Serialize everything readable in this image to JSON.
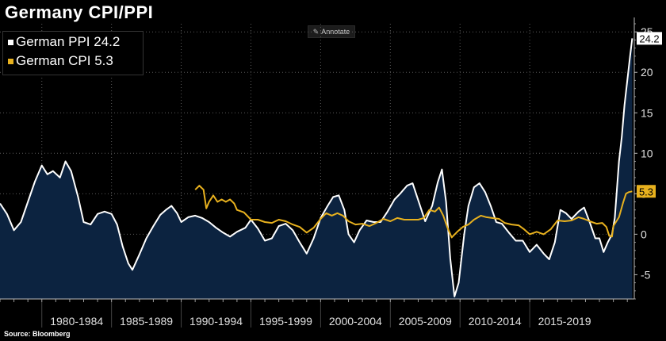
{
  "title": "Germany CPI/PPI",
  "annotate_label": "Annotate",
  "source": "Source:  Bloomberg",
  "colors": {
    "ppi": "#ffffff",
    "cpi": "#e8b11e",
    "area": "#0c2340",
    "background": "#000000"
  },
  "legend": [
    {
      "label": "German PPI 24.2",
      "color": "#ffffff"
    },
    {
      "label": "German CPI 5.3",
      "color": "#e8b11e"
    }
  ],
  "chart_data": {
    "type": "line",
    "title": "Germany CPI/PPI",
    "xlim": [
      1977.0,
      2022.5
    ],
    "ylim": [
      -8,
      26
    ],
    "y_ticks": [
      -5,
      0,
      5,
      10,
      15,
      20,
      25
    ],
    "x_categories": [
      "1980-1984",
      "1985-1989",
      "1990-1994",
      "1995-1999",
      "2000-2004",
      "2005-2009",
      "2010-2014",
      "2015-2019"
    ],
    "x_category_starts": [
      1980,
      1985,
      1990,
      1995,
      2000,
      2005,
      2010,
      2015
    ],
    "grid": true,
    "legend_position": "top-left",
    "series": [
      {
        "name": "German PPI",
        "color": "#ffffff",
        "fill_area": true,
        "last_value": "24.2",
        "points": [
          [
            1977.0,
            3.8
          ],
          [
            1977.5,
            2.5
          ],
          [
            1978.0,
            0.5
          ],
          [
            1978.5,
            1.5
          ],
          [
            1979.0,
            4.0
          ],
          [
            1979.5,
            6.5
          ],
          [
            1980.0,
            8.5
          ],
          [
            1980.4,
            7.4
          ],
          [
            1980.8,
            7.8
          ],
          [
            1981.3,
            7.0
          ],
          [
            1981.7,
            9.0
          ],
          [
            1982.1,
            7.8
          ],
          [
            1982.6,
            4.6
          ],
          [
            1983.0,
            1.5
          ],
          [
            1983.5,
            1.2
          ],
          [
            1984.0,
            2.5
          ],
          [
            1984.5,
            2.8
          ],
          [
            1985.0,
            2.5
          ],
          [
            1985.4,
            1.2
          ],
          [
            1985.8,
            -1.5
          ],
          [
            1986.2,
            -3.6
          ],
          [
            1986.5,
            -4.4
          ],
          [
            1987.0,
            -2.5
          ],
          [
            1987.5,
            -0.5
          ],
          [
            1988.0,
            1.0
          ],
          [
            1988.5,
            2.4
          ],
          [
            1988.9,
            3.0
          ],
          [
            1989.3,
            3.5
          ],
          [
            1989.7,
            2.6
          ],
          [
            1990.0,
            1.5
          ],
          [
            1990.5,
            2.1
          ],
          [
            1991.0,
            2.3
          ],
          [
            1991.5,
            2.0
          ],
          [
            1992.0,
            1.5
          ],
          [
            1992.5,
            0.8
          ],
          [
            1993.0,
            0.2
          ],
          [
            1993.5,
            -0.3
          ],
          [
            1994.0,
            0.3
          ],
          [
            1994.6,
            0.8
          ],
          [
            1995.0,
            1.8
          ],
          [
            1995.5,
            0.7
          ],
          [
            1996.0,
            -0.8
          ],
          [
            1996.5,
            -0.5
          ],
          [
            1997.0,
            1.0
          ],
          [
            1997.5,
            1.3
          ],
          [
            1998.0,
            0.5
          ],
          [
            1998.5,
            -1.0
          ],
          [
            1999.0,
            -2.4
          ],
          [
            1999.5,
            -0.5
          ],
          [
            2000.0,
            2.0
          ],
          [
            2000.5,
            3.5
          ],
          [
            2000.9,
            4.6
          ],
          [
            2001.3,
            4.8
          ],
          [
            2001.7,
            3.0
          ],
          [
            2002.0,
            0.0
          ],
          [
            2002.4,
            -1.0
          ],
          [
            2002.8,
            0.5
          ],
          [
            2003.3,
            1.7
          ],
          [
            2003.8,
            1.5
          ],
          [
            2004.3,
            1.5
          ],
          [
            2004.8,
            2.8
          ],
          [
            2005.3,
            4.3
          ],
          [
            2005.7,
            5.0
          ],
          [
            2006.2,
            6.0
          ],
          [
            2006.6,
            6.3
          ],
          [
            2007.0,
            4.2
          ],
          [
            2007.5,
            1.6
          ],
          [
            2008.0,
            3.5
          ],
          [
            2008.4,
            6.4
          ],
          [
            2008.7,
            8.0
          ],
          [
            2009.0,
            4.0
          ],
          [
            2009.3,
            -3.0
          ],
          [
            2009.6,
            -7.7
          ],
          [
            2009.9,
            -6.0
          ],
          [
            2010.3,
            0.0
          ],
          [
            2010.6,
            3.5
          ],
          [
            2011.0,
            5.8
          ],
          [
            2011.4,
            6.3
          ],
          [
            2011.8,
            5.2
          ],
          [
            2012.2,
            3.5
          ],
          [
            2012.6,
            1.5
          ],
          [
            2013.0,
            1.3
          ],
          [
            2013.5,
            0.2
          ],
          [
            2014.0,
            -0.8
          ],
          [
            2014.5,
            -0.8
          ],
          [
            2015.0,
            -2.2
          ],
          [
            2015.5,
            -1.3
          ],
          [
            2016.0,
            -2.4
          ],
          [
            2016.4,
            -3.1
          ],
          [
            2016.8,
            -1.0
          ],
          [
            2017.2,
            3.0
          ],
          [
            2017.6,
            2.6
          ],
          [
            2018.0,
            1.9
          ],
          [
            2018.5,
            2.8
          ],
          [
            2018.9,
            3.3
          ],
          [
            2019.3,
            1.5
          ],
          [
            2019.7,
            -0.5
          ],
          [
            2020.0,
            -0.5
          ],
          [
            2020.3,
            -2.2
          ],
          [
            2020.6,
            -1.0
          ],
          [
            2020.9,
            0.0
          ],
          [
            2021.1,
            2.0
          ],
          [
            2021.4,
            9.0
          ],
          [
            2021.6,
            12.0
          ],
          [
            2021.8,
            16.0
          ],
          [
            2022.0,
            19.0
          ],
          [
            2022.2,
            22.0
          ],
          [
            2022.35,
            24.2
          ]
        ]
      },
      {
        "name": "German CPI",
        "color": "#e8b11e",
        "fill_area": false,
        "last_value": "5.3",
        "points": [
          [
            1991.0,
            5.5
          ],
          [
            1991.3,
            6.0
          ],
          [
            1991.6,
            5.5
          ],
          [
            1991.8,
            3.2
          ],
          [
            1992.0,
            4.0
          ],
          [
            1992.3,
            4.8
          ],
          [
            1992.6,
            4.0
          ],
          [
            1992.9,
            4.3
          ],
          [
            1993.2,
            4.0
          ],
          [
            1993.5,
            4.3
          ],
          [
            1993.8,
            3.8
          ],
          [
            1994.0,
            3.0
          ],
          [
            1994.5,
            2.7
          ],
          [
            1995.0,
            1.8
          ],
          [
            1995.5,
            1.8
          ],
          [
            1996.0,
            1.5
          ],
          [
            1996.5,
            1.4
          ],
          [
            1997.0,
            1.8
          ],
          [
            1997.5,
            1.6
          ],
          [
            1998.0,
            1.2
          ],
          [
            1998.5,
            0.9
          ],
          [
            1999.0,
            0.2
          ],
          [
            1999.5,
            0.8
          ],
          [
            2000.0,
            1.9
          ],
          [
            2000.4,
            2.6
          ],
          [
            2000.8,
            2.3
          ],
          [
            2001.2,
            2.6
          ],
          [
            2001.6,
            2.3
          ],
          [
            2002.0,
            1.6
          ],
          [
            2002.5,
            1.2
          ],
          [
            2003.0,
            1.3
          ],
          [
            2003.5,
            1.0
          ],
          [
            2004.0,
            1.4
          ],
          [
            2004.5,
            1.9
          ],
          [
            2005.0,
            1.6
          ],
          [
            2005.5,
            2.0
          ],
          [
            2006.0,
            1.8
          ],
          [
            2006.5,
            1.8
          ],
          [
            2007.0,
            1.8
          ],
          [
            2007.4,
            2.0
          ],
          [
            2007.8,
            3.0
          ],
          [
            2008.2,
            2.8
          ],
          [
            2008.5,
            3.3
          ],
          [
            2008.8,
            2.3
          ],
          [
            2009.1,
            0.8
          ],
          [
            2009.4,
            -0.4
          ],
          [
            2009.8,
            0.3
          ],
          [
            2010.2,
            0.9
          ],
          [
            2010.6,
            1.2
          ],
          [
            2011.0,
            1.8
          ],
          [
            2011.5,
            2.3
          ],
          [
            2011.9,
            2.1
          ],
          [
            2012.3,
            2.0
          ],
          [
            2012.8,
            1.9
          ],
          [
            2013.2,
            1.4
          ],
          [
            2013.7,
            1.2
          ],
          [
            2014.2,
            1.1
          ],
          [
            2014.6,
            0.6
          ],
          [
            2015.0,
            0.0
          ],
          [
            2015.5,
            0.3
          ],
          [
            2016.0,
            0.0
          ],
          [
            2016.5,
            0.6
          ],
          [
            2017.0,
            1.7
          ],
          [
            2017.5,
            1.6
          ],
          [
            2018.0,
            1.7
          ],
          [
            2018.5,
            2.1
          ],
          [
            2018.9,
            1.9
          ],
          [
            2019.3,
            1.6
          ],
          [
            2019.8,
            1.3
          ],
          [
            2020.2,
            1.4
          ],
          [
            2020.5,
            0.9
          ],
          [
            2020.7,
            -0.2
          ],
          [
            2020.9,
            -0.3
          ],
          [
            2021.0,
            1.0
          ],
          [
            2021.4,
            2.1
          ],
          [
            2021.7,
            3.9
          ],
          [
            2021.9,
            5.0
          ],
          [
            2022.1,
            5.2
          ],
          [
            2022.35,
            5.3
          ]
        ]
      }
    ]
  }
}
